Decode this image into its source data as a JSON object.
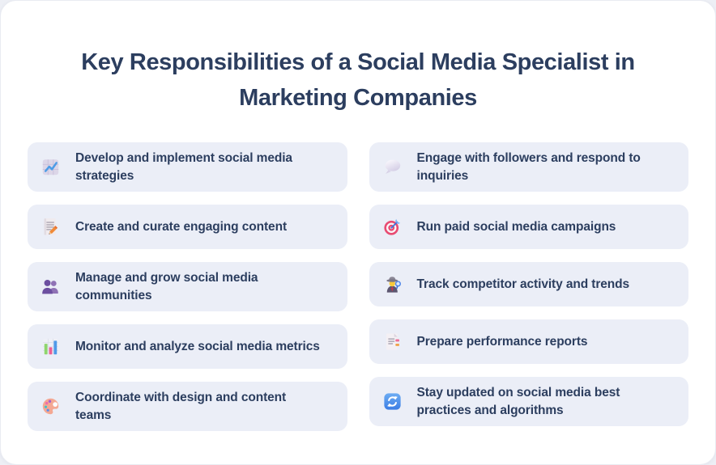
{
  "page": {
    "title": "Key Responsibilities of a Social Media Specialist in\nMarketing Companies"
  },
  "colors": {
    "text_navy": "#2c3e5f",
    "card_background": "#ebeef7",
    "sheet_background": "#ffffff",
    "canvas_background": "#edeff5",
    "chart_line_blue": "#4e9ce6",
    "target_pink": "#e84b72",
    "refresh_blue": "#3b7de4"
  },
  "columns": [
    {
      "items": [
        {
          "icon": "chart-increasing-icon",
          "text": "Develop and implement social media\nstrategies"
        },
        {
          "icon": "memo-icon",
          "text": "Create and curate engaging content"
        },
        {
          "icon": "busts-in-silhouette-icon",
          "text": "Manage and grow social media\ncommunities"
        },
        {
          "icon": "bar-chart-icon",
          "text": "Monitor and analyze social media metrics"
        },
        {
          "icon": "artist-palette-icon",
          "text": "Coordinate with design and content\nteams"
        }
      ]
    },
    {
      "items": [
        {
          "icon": "speech-balloon-icon",
          "text": "Engage with followers and respond to\ninquiries"
        },
        {
          "icon": "direct-hit-icon",
          "text": "Run paid social media campaigns"
        },
        {
          "icon": "detective-icon",
          "text": "Track competitor activity and trends"
        },
        {
          "icon": "bookmark-tabs-icon",
          "text": "Prepare performance reports"
        },
        {
          "icon": "counterclockwise-arrows-icon",
          "text": "Stay updated on social media best\npractices and algorithms"
        }
      ]
    }
  ]
}
